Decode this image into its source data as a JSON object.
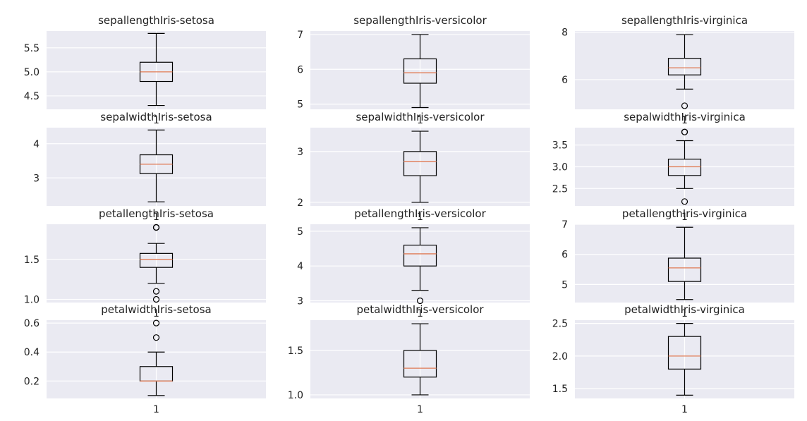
{
  "figure": {
    "background": "#ffffff",
    "panel_color": "#eaeaf2",
    "grid_color": "#ffffff",
    "box_color": "#000000",
    "median_color": "#e07b54"
  },
  "chart_data": [
    {
      "type": "box",
      "title": "sepallengthIris-setosa",
      "ylim": [
        4.22,
        5.85
      ],
      "yticks": [
        4.5,
        5.0,
        5.5
      ],
      "ytick_labels": [
        "4.5",
        "5.0",
        "5.5"
      ],
      "xtick_label": "1",
      "stats": {
        "whisker_low": 4.3,
        "q1": 4.8,
        "median": 5.0,
        "q3": 5.2,
        "whisker_high": 5.8
      },
      "fliers": []
    },
    {
      "type": "box",
      "title": "sepallengthIris-versicolor",
      "ylim": [
        4.85,
        7.1
      ],
      "yticks": [
        5,
        6,
        7
      ],
      "ytick_labels": [
        "5",
        "6",
        "7"
      ],
      "xtick_label": "1",
      "stats": {
        "whisker_low": 4.9,
        "q1": 5.6,
        "median": 5.9,
        "q3": 6.3,
        "whisker_high": 7.0
      },
      "fliers": []
    },
    {
      "type": "box",
      "title": "sepallengthIris-virginica",
      "ylim": [
        4.75,
        8.05
      ],
      "yticks": [
        6,
        8
      ],
      "ytick_labels": [
        "6",
        "8"
      ],
      "xtick_label": "1",
      "stats": {
        "whisker_low": 5.6,
        "q1": 6.2,
        "median": 6.5,
        "q3": 6.9,
        "whisker_high": 7.9
      },
      "fliers": [
        4.9
      ]
    },
    {
      "type": "box",
      "title": "sepalwidthIris-setosa",
      "ylim": [
        2.18,
        4.47
      ],
      "yticks": [
        3,
        4
      ],
      "ytick_labels": [
        "3",
        "4"
      ],
      "xtick_label": "1",
      "stats": {
        "whisker_low": 2.3,
        "q1": 3.125,
        "median": 3.4,
        "q3": 3.675,
        "whisker_high": 4.4
      },
      "fliers": []
    },
    {
      "type": "box",
      "title": "sepalwidthIris-versicolor",
      "ylim": [
        1.93,
        3.47
      ],
      "yticks": [
        2,
        3
      ],
      "ytick_labels": [
        "2",
        "3"
      ],
      "xtick_label": "1",
      "stats": {
        "whisker_low": 2.0,
        "q1": 2.525,
        "median": 2.8,
        "q3": 3.0,
        "whisker_high": 3.4
      },
      "fliers": []
    },
    {
      "type": "box",
      "title": "sepalwidthIris-virginica",
      "ylim": [
        2.1,
        3.9
      ],
      "yticks": [
        2.5,
        3.0,
        3.5
      ],
      "ytick_labels": [
        "2.5",
        "3.0",
        "3.5"
      ],
      "xtick_label": "1",
      "stats": {
        "whisker_low": 2.5,
        "q1": 2.8,
        "median": 3.0,
        "q3": 3.175,
        "whisker_high": 3.6
      },
      "fliers": [
        3.8,
        3.8,
        2.2
      ]
    },
    {
      "type": "box",
      "title": "petallengthIris-setosa",
      "ylim": [
        0.96,
        1.94
      ],
      "yticks": [
        1.0,
        1.5
      ],
      "ytick_labels": [
        "1.0",
        "1.5"
      ],
      "xtick_label": "1",
      "stats": {
        "whisker_low": 1.2,
        "q1": 1.4,
        "median": 1.5,
        "q3": 1.575,
        "whisker_high": 1.7
      },
      "fliers": [
        1.9,
        1.9,
        1.1,
        1.0
      ]
    },
    {
      "type": "box",
      "title": "petallengthIris-versicolor",
      "ylim": [
        2.95,
        5.2
      ],
      "yticks": [
        3,
        4,
        5
      ],
      "ytick_labels": [
        "3",
        "4",
        "5"
      ],
      "xtick_label": "1",
      "stats": {
        "whisker_low": 3.3,
        "q1": 4.0,
        "median": 4.35,
        "q3": 4.6,
        "whisker_high": 5.1
      },
      "fliers": [
        3.0
      ]
    },
    {
      "type": "box",
      "title": "petallengthIris-virginica",
      "ylim": [
        4.4,
        7.0
      ],
      "yticks": [
        5,
        6,
        7
      ],
      "ytick_labels": [
        "5",
        "6",
        "7"
      ],
      "xtick_label": "1",
      "stats": {
        "whisker_low": 4.5,
        "q1": 5.1,
        "median": 5.55,
        "q3": 5.875,
        "whisker_high": 6.9
      },
      "fliers": []
    },
    {
      "type": "box",
      "title": "petalwidthIris-setosa",
      "ylim": [
        0.08,
        0.62
      ],
      "yticks": [
        0.2,
        0.4,
        0.6
      ],
      "ytick_labels": [
        "0.2",
        "0.4",
        "0.6"
      ],
      "xtick_label": "1",
      "stats": {
        "whisker_low": 0.1,
        "q1": 0.2,
        "median": 0.2,
        "q3": 0.3,
        "whisker_high": 0.4
      },
      "fliers": [
        0.6,
        0.5
      ]
    },
    {
      "type": "box",
      "title": "petalwidthIris-versicolor",
      "ylim": [
        0.96,
        1.84
      ],
      "yticks": [
        1.0,
        1.5
      ],
      "ytick_labels": [
        "1.0",
        "1.5"
      ],
      "xtick_label": "1",
      "stats": {
        "whisker_low": 1.0,
        "q1": 1.2,
        "median": 1.3,
        "q3": 1.5,
        "whisker_high": 1.8
      },
      "fliers": []
    },
    {
      "type": "box",
      "title": "petalwidthIris-virginica",
      "ylim": [
        1.35,
        2.55
      ],
      "yticks": [
        1.5,
        2.0,
        2.5
      ],
      "ytick_labels": [
        "1.5",
        "2.0",
        "2.5"
      ],
      "xtick_label": "1",
      "stats": {
        "whisker_low": 1.4,
        "q1": 1.8,
        "median": 2.0,
        "q3": 2.3,
        "whisker_high": 2.5
      },
      "fliers": []
    }
  ]
}
